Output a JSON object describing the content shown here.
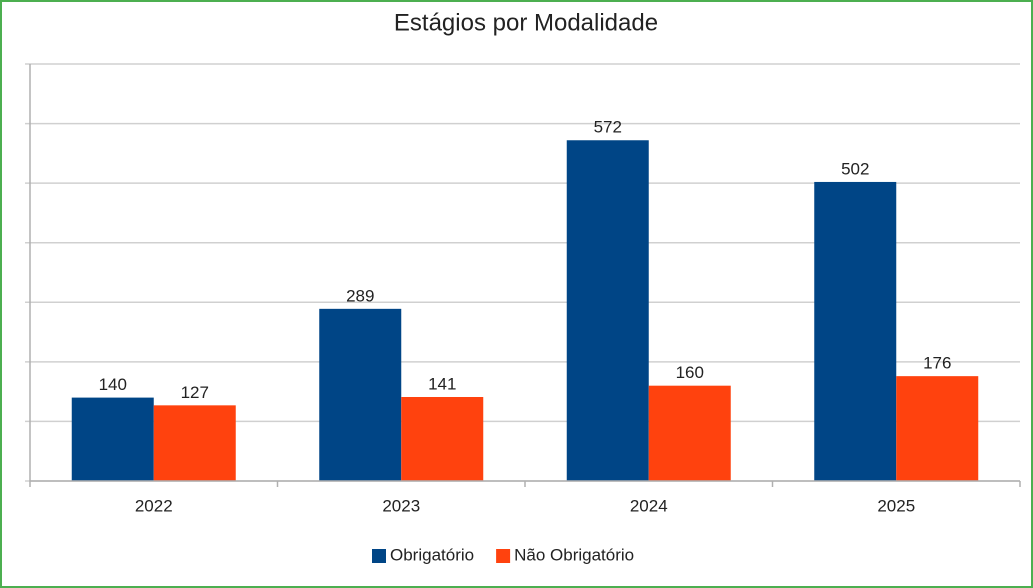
{
  "chart_data": {
    "type": "bar",
    "title": "Estágios por Modalidade",
    "categories": [
      "2022",
      "2023",
      "2024",
      "2025"
    ],
    "series": [
      {
        "name": "Obrigatório",
        "color": "#004586",
        "values": [
          140,
          289,
          572,
          502
        ]
      },
      {
        "name": "Não Obrigatório",
        "color": "#ff420e",
        "values": [
          127,
          141,
          160,
          176
        ]
      }
    ],
    "ylim": [
      0,
      700
    ],
    "yticks": [
      0,
      100,
      200,
      300,
      400,
      500,
      600,
      700
    ],
    "grid": true,
    "legend": "bottom"
  }
}
